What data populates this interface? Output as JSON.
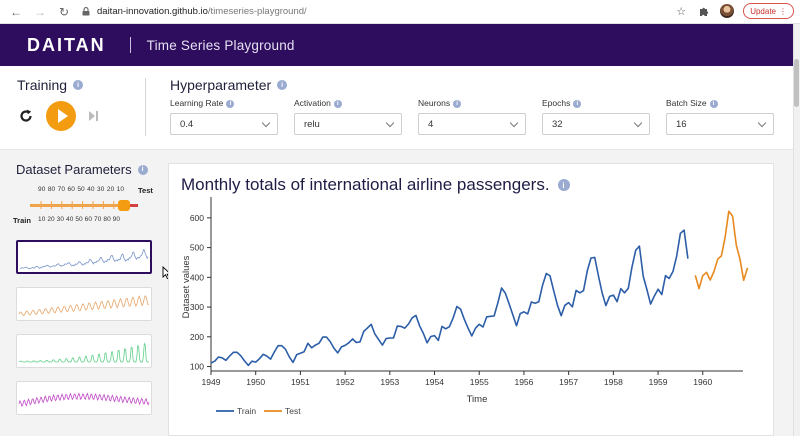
{
  "browser": {
    "url_host": "daitan-innovation.github.io",
    "url_path": "/timeseries-playground/",
    "update_label": "Update"
  },
  "header": {
    "logo": "DAITAN",
    "title": "Time Series Playground"
  },
  "training": {
    "title": "Training"
  },
  "hyperparameter": {
    "title": "Hyperparameter",
    "fields": [
      {
        "label": "Learning Rate",
        "value": "0.4"
      },
      {
        "label": "Activation",
        "value": "relu"
      },
      {
        "label": "Neurons",
        "value": "4"
      },
      {
        "label": "Epochs",
        "value": "32"
      },
      {
        "label": "Batch Size",
        "value": "16"
      }
    ]
  },
  "dataset": {
    "title": "Dataset Parameters",
    "test_label": "Test",
    "train_label": "Train",
    "test_scale": "90 80 70 60 50 40 30 20 10",
    "train_scale": "10 20 30 40 50 60 70 80 90",
    "split_percent": 90
  },
  "chart_data": {
    "type": "line",
    "title": "Monthly totals of international airline passengers.",
    "xlabel": "Time",
    "ylabel": "Dataset values",
    "xlim": [
      1949,
      1960.9
    ],
    "ylim": [
      85,
      650
    ],
    "xticks": [
      "1949",
      "1950",
      "1951",
      "1952",
      "1953",
      "1954",
      "1955",
      "1956",
      "1957",
      "1958",
      "1959",
      "1960"
    ],
    "yticks": [
      100,
      200,
      300,
      400,
      500,
      600
    ],
    "legend": "bottom-left",
    "series": [
      {
        "name": "Train",
        "color": "#2c5ea8",
        "start_year": 1949,
        "values": [
          112,
          118,
          132,
          129,
          121,
          135,
          148,
          148,
          136,
          119,
          104,
          118,
          115,
          126,
          141,
          135,
          125,
          149,
          170,
          170,
          158,
          133,
          114,
          140,
          145,
          150,
          178,
          163,
          172,
          178,
          199,
          199,
          184,
          162,
          146,
          166,
          171,
          180,
          193,
          181,
          183,
          218,
          230,
          242,
          209,
          191,
          172,
          194,
          196,
          196,
          236,
          235,
          229,
          243,
          264,
          272,
          237,
          211,
          180,
          201,
          204,
          188,
          235,
          227,
          234,
          264,
          302,
          293,
          259,
          229,
          203,
          229,
          242,
          233,
          267,
          269,
          270,
          315,
          364,
          347,
          312,
          274,
          237,
          278,
          284,
          277,
          317,
          313,
          318,
          374,
          413,
          405,
          355,
          306,
          271,
          306,
          315,
          301,
          356,
          348,
          355,
          422,
          465,
          467,
          404,
          347,
          305,
          336,
          340,
          318,
          362,
          348,
          363,
          435,
          491,
          505,
          404,
          359,
          310,
          337,
          360,
          342,
          406,
          396,
          420,
          472,
          548,
          559,
          463
        ]
      },
      {
        "name": "Test",
        "color": "#e8891d",
        "start_year": 1959.833,
        "values": [
          407,
          362,
          405,
          417,
          391,
          419,
          461,
          472,
          535,
          622,
          606,
          508,
          461,
          390,
          432
        ]
      }
    ]
  },
  "colors": {
    "header_bg": "#2e0d5e",
    "accent": "#f39c12",
    "train": "#2c5ea8",
    "test": "#e8891d"
  }
}
